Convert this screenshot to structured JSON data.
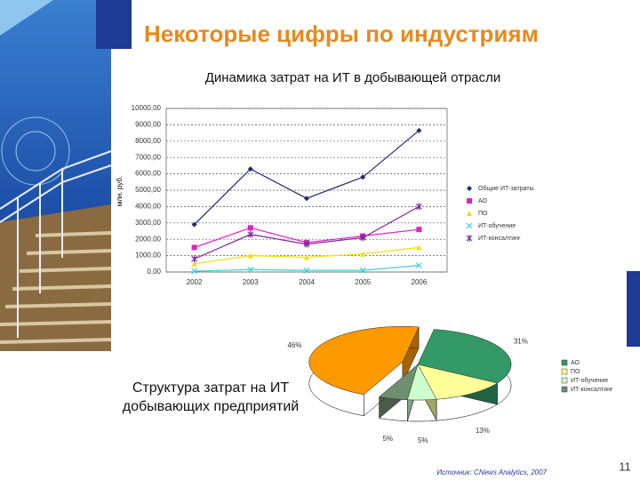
{
  "slide": {
    "title": "Некоторые цифры по индустриям",
    "source": "Источник: CNews Analytics, 2007",
    "page_number": "11"
  },
  "chart_data": [
    {
      "type": "line",
      "title": "Динамика затрат на ИТ в добывающей отрасли",
      "y_label": "млн. руб.",
      "categories": [
        "2002",
        "2003",
        "2004",
        "2005",
        "2006"
      ],
      "series": [
        {
          "name": "Общие ИТ-затраты",
          "color": "#1f2a6e",
          "marker": "diamond",
          "values": [
            2900,
            6300,
            4500,
            5800,
            8650
          ]
        },
        {
          "name": "АО",
          "color": "#e020c0",
          "marker": "square",
          "values": [
            1500,
            2700,
            1800,
            2200,
            2600
          ]
        },
        {
          "name": "ПО",
          "color": "#f0e000",
          "marker": "triangle",
          "values": [
            500,
            1000,
            900,
            1100,
            1500
          ]
        },
        {
          "name": "ИТ-обучение",
          "color": "#40d0e0",
          "marker": "x",
          "values": [
            50,
            150,
            100,
            100,
            400
          ]
        },
        {
          "name": "ИТ-консалтинг",
          "color": "#7a2a9a",
          "marker": "star",
          "values": [
            800,
            2300,
            1700,
            2100,
            4000
          ]
        }
      ],
      "ylim": [
        0,
        10000
      ],
      "yticks": [
        {
          "value": 0,
          "label": "0,00"
        },
        {
          "value": 1000,
          "label": "1000,00"
        },
        {
          "value": 2000,
          "label": "2000,00"
        },
        {
          "value": 3000,
          "label": "3000,00"
        },
        {
          "value": 4000,
          "label": "4000,00"
        },
        {
          "value": 5000,
          "label": "5000,00"
        },
        {
          "value": 6000,
          "label": "6000,00"
        },
        {
          "value": 7000,
          "label": "7000,00"
        },
        {
          "value": 8000,
          "label": "8000,00"
        },
        {
          "value": 9000,
          "label": "9000,00"
        },
        {
          "value": 10000,
          "label": "10000,00"
        }
      ],
      "grid": true
    },
    {
      "type": "pie",
      "title": "Структура затрат на ИТ добывающих предприятий",
      "categories": [
        "АО",
        "ПО",
        "ИТ-обучение",
        "ИТ-консалтинг",
        null
      ],
      "colors": [
        "#339966",
        "#ffff99",
        "#ccffcc",
        "#6f8f6f",
        "#ff9900"
      ],
      "values": [
        31,
        13,
        5,
        5,
        46
      ],
      "value_labels": [
        "31%",
        "13%",
        "5%",
        "5%",
        "46%"
      ]
    }
  ]
}
